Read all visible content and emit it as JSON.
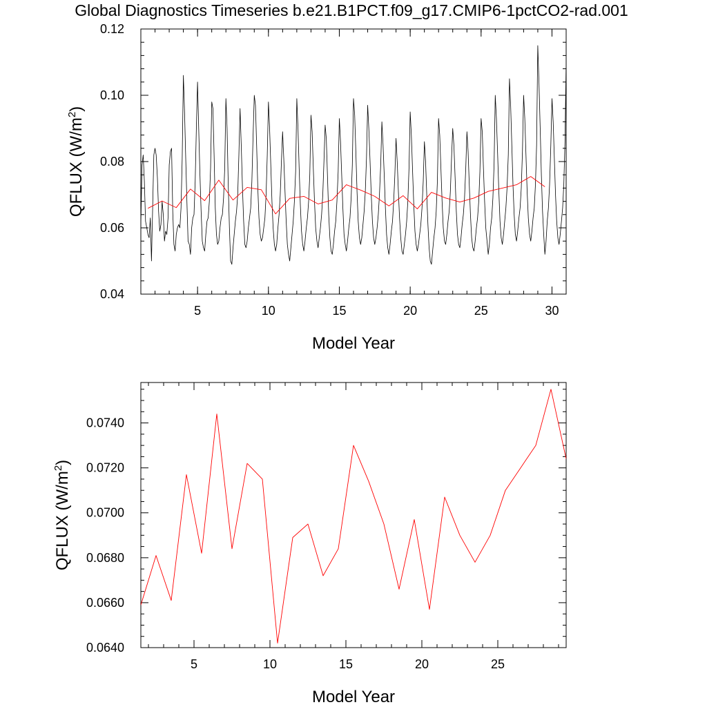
{
  "title": "Global Diagnostics Timeseries b.e21.B1PCT.f09_g17.CMIP6-1pctCO2-rad.001",
  "chart_data": [
    {
      "type": "line",
      "xlabel": "Model Year",
      "ylabel": "QFLUX (W/m",
      "ylabel_sup": "2",
      "ylabel_close": ")",
      "xlim": [
        1.0,
        31.0
      ],
      "ylim": [
        0.04,
        0.12
      ],
      "xticks": [
        5,
        10,
        15,
        20,
        25,
        30
      ],
      "xtick_labels": [
        "5",
        "10",
        "15",
        "20",
        "25",
        "30"
      ],
      "yticks": [
        0.04,
        0.06,
        0.08,
        0.1,
        0.12
      ],
      "ytick_labels": [
        "0.04",
        "0.06",
        "0.08",
        "0.10",
        "0.12"
      ],
      "grid": false,
      "series": [
        {
          "kind": "monthly",
          "color": "#000000",
          "x_start": 1.0,
          "x_step": 0.083333,
          "values": [
            0.061,
            0.079,
            0.082,
            0.074,
            0.062,
            0.06,
            0.058,
            0.057,
            0.063,
            0.05,
            0.066,
            0.082,
            0.084,
            0.082,
            0.075,
            0.065,
            0.059,
            0.061,
            0.068,
            0.064,
            0.056,
            0.059,
            0.058,
            0.063,
            0.079,
            0.083,
            0.084,
            0.065,
            0.055,
            0.053,
            0.058,
            0.06,
            0.061,
            0.06,
            0.066,
            0.081,
            0.106,
            0.095,
            0.081,
            0.068,
            0.056,
            0.055,
            0.052,
            0.06,
            0.063,
            0.064,
            0.074,
            0.09,
            0.104,
            0.09,
            0.076,
            0.065,
            0.056,
            0.054,
            0.053,
            0.058,
            0.062,
            0.063,
            0.068,
            0.078,
            0.098,
            0.096,
            0.082,
            0.066,
            0.058,
            0.055,
            0.056,
            0.06,
            0.063,
            0.064,
            0.069,
            0.078,
            0.099,
            0.09,
            0.073,
            0.06,
            0.05,
            0.049,
            0.054,
            0.058,
            0.062,
            0.065,
            0.07,
            0.082,
            0.096,
            0.085,
            0.072,
            0.062,
            0.055,
            0.054,
            0.056,
            0.06,
            0.063,
            0.066,
            0.074,
            0.088,
            0.1,
            0.097,
            0.085,
            0.072,
            0.063,
            0.058,
            0.056,
            0.057,
            0.06,
            0.063,
            0.07,
            0.082,
            0.098,
            0.09,
            0.079,
            0.068,
            0.06,
            0.055,
            0.053,
            0.055,
            0.06,
            0.064,
            0.07,
            0.08,
            0.089,
            0.081,
            0.071,
            0.062,
            0.055,
            0.052,
            0.05,
            0.054,
            0.058,
            0.062,
            0.068,
            0.077,
            0.099,
            0.09,
            0.078,
            0.067,
            0.059,
            0.055,
            0.053,
            0.056,
            0.06,
            0.063,
            0.068,
            0.076,
            0.094,
            0.089,
            0.078,
            0.068,
            0.06,
            0.056,
            0.054,
            0.057,
            0.06,
            0.064,
            0.07,
            0.08,
            0.091,
            0.087,
            0.075,
            0.064,
            0.057,
            0.053,
            0.052,
            0.055,
            0.059,
            0.062,
            0.068,
            0.077,
            0.093,
            0.086,
            0.076,
            0.066,
            0.058,
            0.055,
            0.053,
            0.056,
            0.06,
            0.063,
            0.069,
            0.079,
            0.099,
            0.094,
            0.083,
            0.071,
            0.062,
            0.057,
            0.055,
            0.057,
            0.061,
            0.065,
            0.071,
            0.081,
            0.097,
            0.09,
            0.08,
            0.07,
            0.062,
            0.057,
            0.055,
            0.057,
            0.06,
            0.064,
            0.07,
            0.079,
            0.092,
            0.085,
            0.076,
            0.066,
            0.058,
            0.054,
            0.052,
            0.055,
            0.059,
            0.062,
            0.068,
            0.076,
            0.087,
            0.08,
            0.071,
            0.063,
            0.057,
            0.053,
            0.052,
            0.055,
            0.058,
            0.062,
            0.068,
            0.078,
            0.095,
            0.088,
            0.077,
            0.067,
            0.059,
            0.055,
            0.053,
            0.055,
            0.058,
            0.061,
            0.066,
            0.074,
            0.086,
            0.08,
            0.07,
            0.061,
            0.054,
            0.05,
            0.049,
            0.053,
            0.057,
            0.06,
            0.065,
            0.074,
            0.093,
            0.088,
            0.078,
            0.068,
            0.06,
            0.056,
            0.055,
            0.058,
            0.062,
            0.065,
            0.071,
            0.081,
            0.09,
            0.085,
            0.075,
            0.065,
            0.058,
            0.055,
            0.054,
            0.057,
            0.061,
            0.064,
            0.069,
            0.078,
            0.089,
            0.083,
            0.073,
            0.064,
            0.057,
            0.054,
            0.053,
            0.056,
            0.06,
            0.063,
            0.068,
            0.077,
            0.093,
            0.089,
            0.078,
            0.068,
            0.06,
            0.056,
            0.052,
            0.055,
            0.06,
            0.063,
            0.069,
            0.079,
            0.1,
            0.093,
            0.082,
            0.071,
            0.062,
            0.057,
            0.055,
            0.058,
            0.062,
            0.066,
            0.072,
            0.082,
            0.105,
            0.097,
            0.085,
            0.073,
            0.064,
            0.058,
            0.056,
            0.059,
            0.063,
            0.066,
            0.072,
            0.083,
            0.1,
            0.093,
            0.082,
            0.071,
            0.063,
            0.058,
            0.056,
            0.059,
            0.063,
            0.066,
            0.073,
            0.085,
            0.115,
            0.104,
            0.09,
            0.076,
            0.065,
            0.058,
            0.052,
            0.056,
            0.062,
            0.066,
            0.073,
            0.085,
            0.099,
            0.092,
            0.081,
            0.07,
            0.062,
            0.057,
            0.055,
            0.058,
            0.062,
            0.066,
            0.073,
            0.086,
            0.11,
            0.1,
            0.087,
            0.075,
            0.066,
            0.06
          ]
        },
        {
          "kind": "annual",
          "color": "#ff0000",
          "x": [
            1.5,
            2.5,
            3.5,
            4.5,
            5.5,
            6.5,
            7.5,
            8.5,
            9.5,
            10.5,
            11.5,
            12.5,
            13.5,
            14.5,
            15.5,
            16.5,
            17.5,
            18.5,
            19.5,
            20.5,
            21.5,
            22.5,
            23.5,
            24.5,
            25.5,
            26.5,
            27.5,
            28.5,
            29.5
          ],
          "values": [
            0.0659,
            0.0681,
            0.0661,
            0.0717,
            0.0682,
            0.0744,
            0.0684,
            0.0722,
            0.0715,
            0.0642,
            0.0689,
            0.0695,
            0.0672,
            0.0684,
            0.073,
            0.0714,
            0.0695,
            0.0666,
            0.0697,
            0.0657,
            0.0707,
            0.069,
            0.0678,
            0.069,
            0.071,
            0.072,
            0.073,
            0.0755,
            0.0724
          ]
        }
      ]
    },
    {
      "type": "line",
      "xlabel": "Model Year",
      "ylabel": "QFLUX (W/m",
      "ylabel_sup": "2",
      "ylabel_close": ")",
      "xlim": [
        1.5,
        29.5
      ],
      "ylim": [
        0.064,
        0.0758
      ],
      "xticks": [
        5,
        10,
        15,
        20,
        25
      ],
      "xtick_labels": [
        "5",
        "10",
        "15",
        "20",
        "25"
      ],
      "yticks": [
        0.064,
        0.066,
        0.068,
        0.07,
        0.072,
        0.074
      ],
      "ytick_labels": [
        "0.0640",
        "0.0660",
        "0.0680",
        "0.0700",
        "0.0720",
        "0.0740"
      ],
      "grid": false,
      "series": [
        {
          "kind": "annual",
          "color": "#ff0000",
          "x": [
            1.5,
            2.5,
            3.5,
            4.5,
            5.5,
            6.5,
            7.5,
            8.5,
            9.5,
            10.5,
            11.5,
            12.5,
            13.5,
            14.5,
            15.5,
            16.5,
            17.5,
            18.5,
            19.5,
            20.5,
            21.5,
            22.5,
            23.5,
            24.5,
            25.5,
            26.5,
            27.5,
            28.5,
            29.5
          ],
          "values": [
            0.0659,
            0.0681,
            0.0661,
            0.0717,
            0.0682,
            0.0744,
            0.0684,
            0.0722,
            0.0715,
            0.0642,
            0.0689,
            0.0695,
            0.0672,
            0.0684,
            0.073,
            0.0714,
            0.0695,
            0.0666,
            0.0697,
            0.0657,
            0.0707,
            0.069,
            0.0678,
            0.069,
            0.071,
            0.072,
            0.073,
            0.0755,
            0.0724
          ]
        }
      ]
    }
  ]
}
